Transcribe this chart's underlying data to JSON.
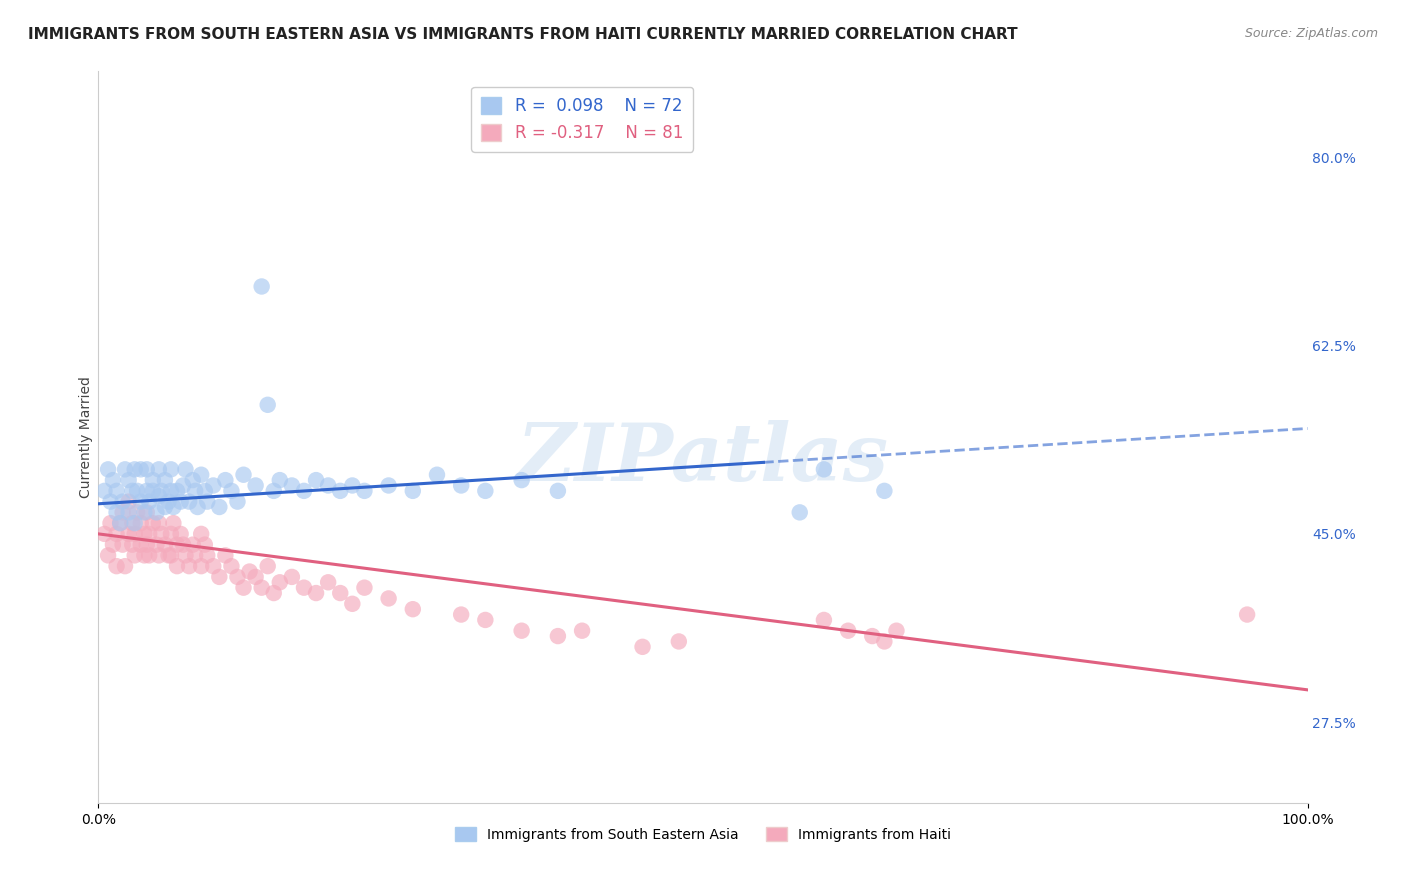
{
  "title": "IMMIGRANTS FROM SOUTH EASTERN ASIA VS IMMIGRANTS FROM HAITI CURRENTLY MARRIED CORRELATION CHART",
  "source": "Source: ZipAtlas.com",
  "ylabel": "Currently Married",
  "xlim": [
    0.0,
    1.0
  ],
  "ylim": [
    0.2,
    0.88
  ],
  "yticks": [
    0.275,
    0.45,
    0.625,
    0.8
  ],
  "ytick_labels": [
    "27.5%",
    "45.0%",
    "62.5%",
    "80.0%"
  ],
  "xticks": [
    0.0,
    1.0
  ],
  "xtick_labels": [
    "0.0%",
    "100.0%"
  ],
  "blue_R": 0.098,
  "blue_N": 72,
  "pink_R": -0.317,
  "pink_N": 81,
  "blue_color": "#A8C8F0",
  "pink_color": "#F4AABC",
  "blue_line_color": "#3366CC",
  "pink_line_color": "#E06080",
  "legend_label_blue": "Immigrants from South Eastern Asia",
  "legend_label_pink": "Immigrants from Haiti",
  "watermark": "ZIPatlas",
  "background_color": "#FFFFFF",
  "grid_color": "#BBBBBB",
  "title_fontsize": 11,
  "axis_fontsize": 10,
  "blue_line_solid_end": 0.55,
  "blue_line_y_at_0": 0.478,
  "blue_line_y_at_1": 0.548,
  "pink_line_y_at_0": 0.45,
  "pink_line_y_at_1": 0.305,
  "blue_x": [
    0.005,
    0.008,
    0.01,
    0.012,
    0.015,
    0.015,
    0.018,
    0.02,
    0.022,
    0.025,
    0.025,
    0.028,
    0.03,
    0.03,
    0.032,
    0.035,
    0.035,
    0.038,
    0.04,
    0.04,
    0.042,
    0.045,
    0.045,
    0.048,
    0.05,
    0.05,
    0.052,
    0.055,
    0.055,
    0.058,
    0.06,
    0.06,
    0.062,
    0.065,
    0.068,
    0.07,
    0.072,
    0.075,
    0.078,
    0.08,
    0.082,
    0.085,
    0.088,
    0.09,
    0.095,
    0.1,
    0.105,
    0.11,
    0.115,
    0.12,
    0.13,
    0.135,
    0.14,
    0.145,
    0.15,
    0.16,
    0.17,
    0.18,
    0.19,
    0.2,
    0.21,
    0.22,
    0.24,
    0.26,
    0.28,
    0.3,
    0.32,
    0.35,
    0.38,
    0.58,
    0.6,
    0.65
  ],
  "blue_y": [
    0.49,
    0.51,
    0.48,
    0.5,
    0.47,
    0.49,
    0.46,
    0.48,
    0.51,
    0.47,
    0.5,
    0.49,
    0.46,
    0.51,
    0.49,
    0.48,
    0.51,
    0.47,
    0.49,
    0.51,
    0.48,
    0.5,
    0.49,
    0.47,
    0.485,
    0.51,
    0.49,
    0.475,
    0.5,
    0.48,
    0.49,
    0.51,
    0.475,
    0.49,
    0.48,
    0.495,
    0.51,
    0.48,
    0.5,
    0.49,
    0.475,
    0.505,
    0.49,
    0.48,
    0.495,
    0.475,
    0.5,
    0.49,
    0.48,
    0.505,
    0.495,
    0.68,
    0.57,
    0.49,
    0.5,
    0.495,
    0.49,
    0.5,
    0.495,
    0.49,
    0.495,
    0.49,
    0.495,
    0.49,
    0.505,
    0.495,
    0.49,
    0.5,
    0.49,
    0.47,
    0.51,
    0.49
  ],
  "pink_x": [
    0.005,
    0.008,
    0.01,
    0.012,
    0.015,
    0.015,
    0.018,
    0.02,
    0.02,
    0.022,
    0.025,
    0.025,
    0.028,
    0.028,
    0.03,
    0.03,
    0.032,
    0.035,
    0.035,
    0.038,
    0.038,
    0.04,
    0.04,
    0.042,
    0.042,
    0.045,
    0.048,
    0.05,
    0.05,
    0.052,
    0.055,
    0.058,
    0.06,
    0.06,
    0.062,
    0.065,
    0.065,
    0.068,
    0.07,
    0.072,
    0.075,
    0.078,
    0.08,
    0.085,
    0.085,
    0.088,
    0.09,
    0.095,
    0.1,
    0.105,
    0.11,
    0.115,
    0.12,
    0.125,
    0.13,
    0.135,
    0.14,
    0.145,
    0.15,
    0.16,
    0.17,
    0.18,
    0.19,
    0.2,
    0.21,
    0.22,
    0.24,
    0.26,
    0.3,
    0.32,
    0.35,
    0.38,
    0.4,
    0.45,
    0.48,
    0.6,
    0.62,
    0.64,
    0.65,
    0.66,
    0.95
  ],
  "pink_y": [
    0.45,
    0.43,
    0.46,
    0.44,
    0.42,
    0.45,
    0.46,
    0.44,
    0.47,
    0.42,
    0.45,
    0.48,
    0.44,
    0.46,
    0.43,
    0.45,
    0.47,
    0.44,
    0.46,
    0.43,
    0.45,
    0.44,
    0.47,
    0.45,
    0.43,
    0.46,
    0.44,
    0.43,
    0.46,
    0.45,
    0.44,
    0.43,
    0.45,
    0.43,
    0.46,
    0.44,
    0.42,
    0.45,
    0.44,
    0.43,
    0.42,
    0.44,
    0.43,
    0.45,
    0.42,
    0.44,
    0.43,
    0.42,
    0.41,
    0.43,
    0.42,
    0.41,
    0.4,
    0.415,
    0.41,
    0.4,
    0.42,
    0.395,
    0.405,
    0.41,
    0.4,
    0.395,
    0.405,
    0.395,
    0.385,
    0.4,
    0.39,
    0.38,
    0.375,
    0.37,
    0.36,
    0.355,
    0.36,
    0.345,
    0.35,
    0.37,
    0.36,
    0.355,
    0.35,
    0.36,
    0.375
  ]
}
